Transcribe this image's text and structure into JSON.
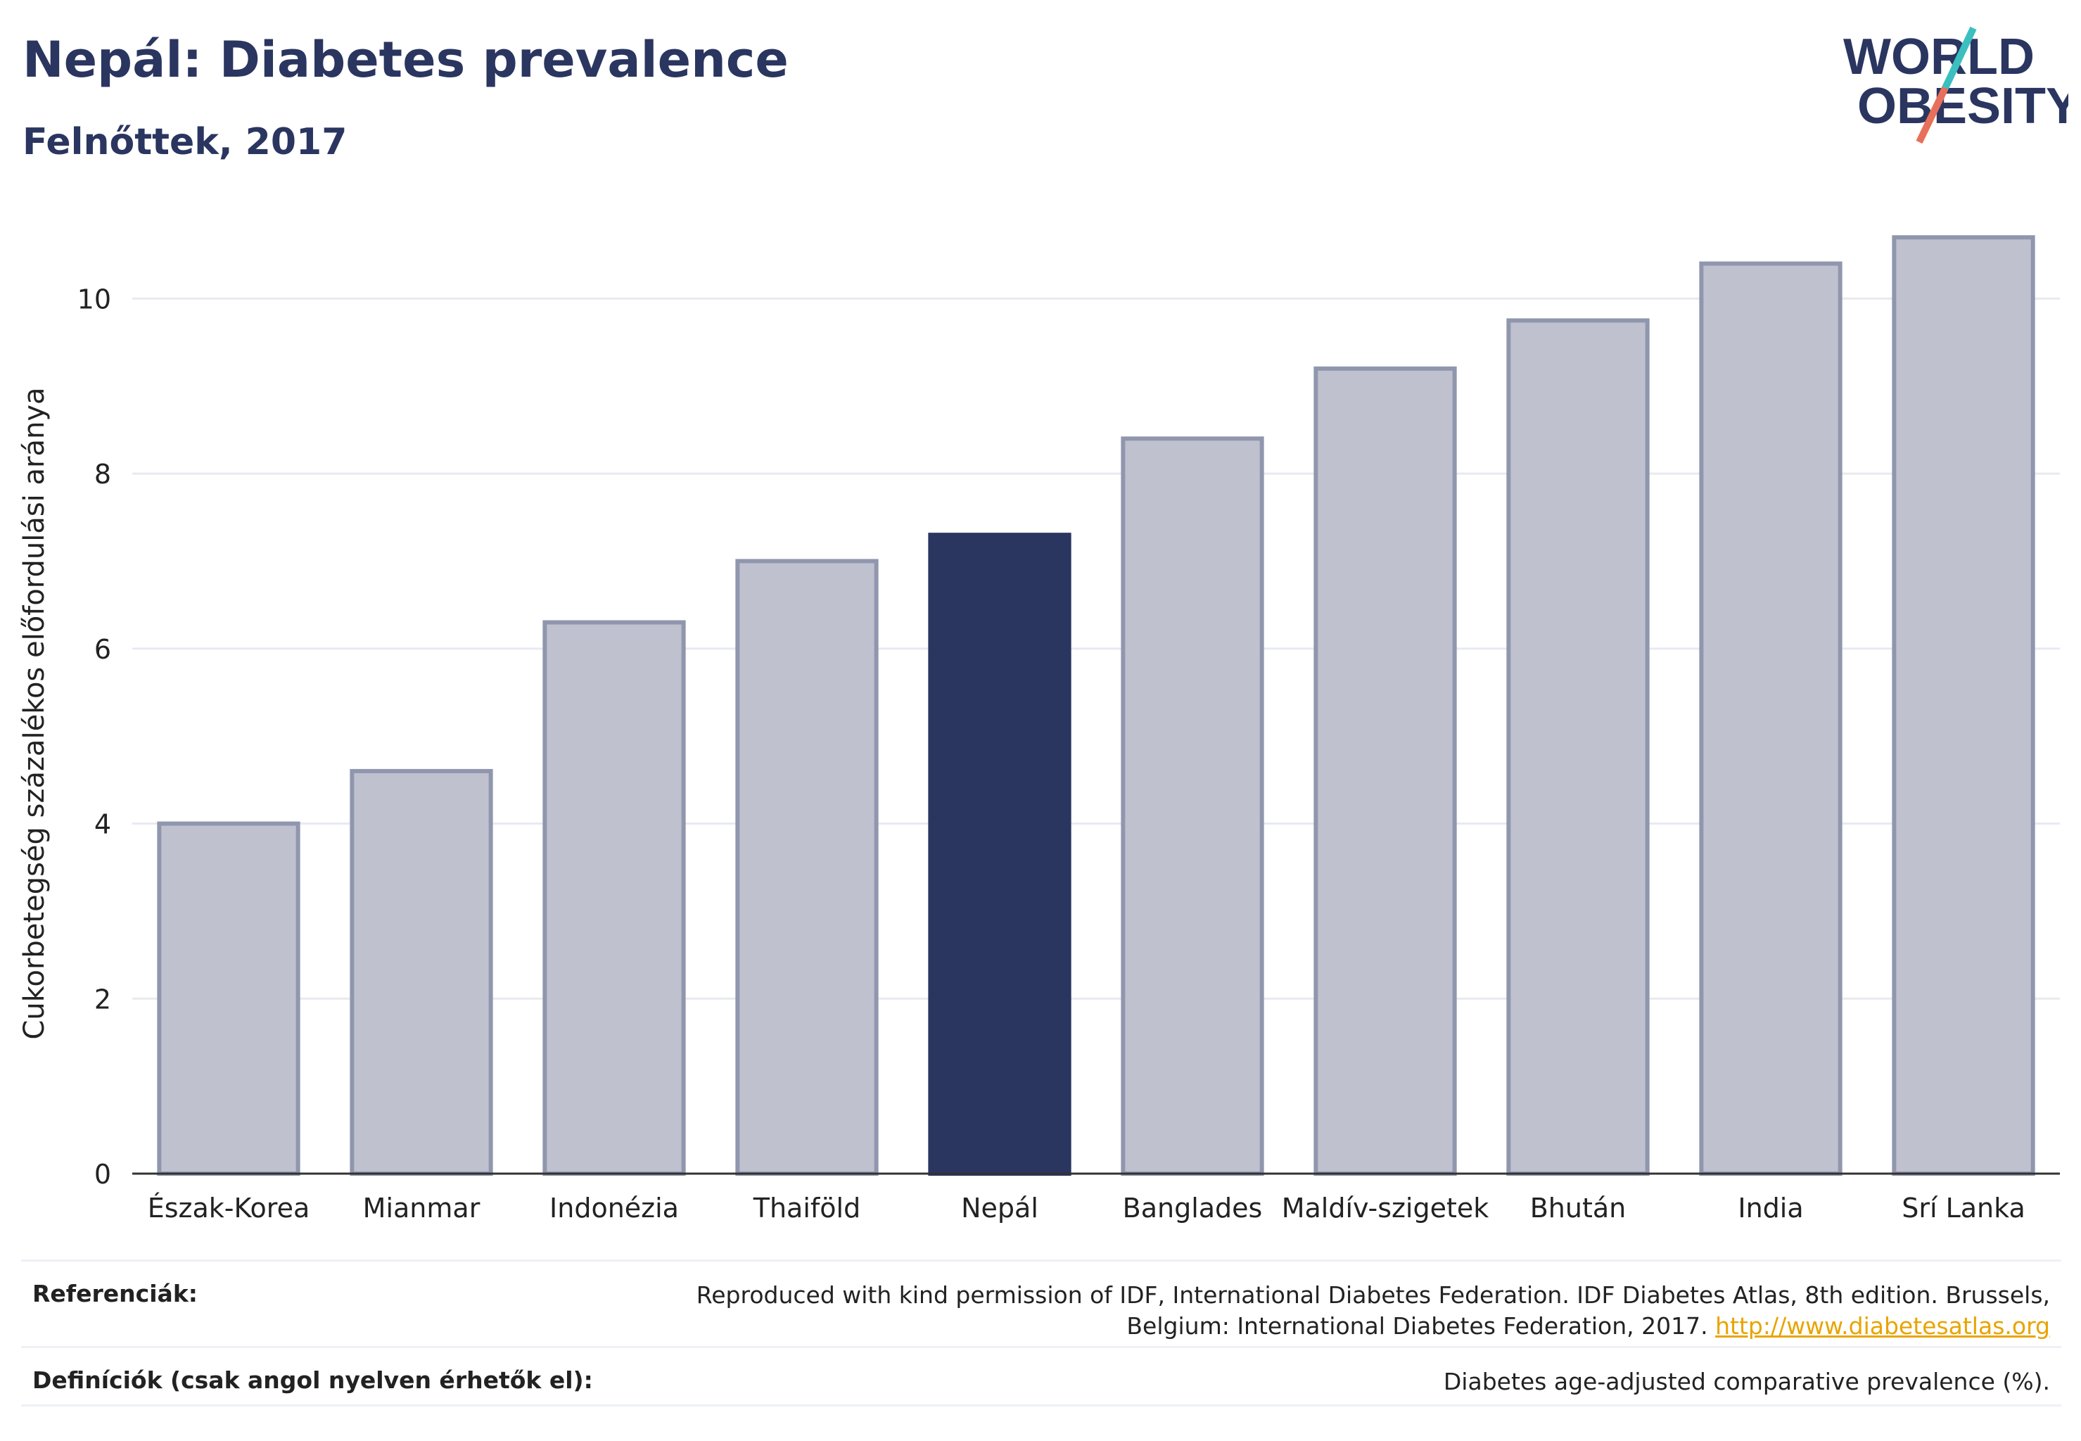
{
  "title": "Nepál: Diabetes prevalence",
  "subtitle": "Felnőttek, 2017",
  "logo": {
    "line1": "WORLD",
    "line2": "OBESITY",
    "accent_teal": "#3bbfbf",
    "accent_coral": "#e8705a",
    "text_color": "#2a3560"
  },
  "chart_data": {
    "type": "bar",
    "categories": [
      "Észak-Korea",
      "Mianmar",
      "Indonézia",
      "Thaiföld",
      "Nepál",
      "Banglades",
      "Maldív-szigetek",
      "Bhután",
      "India",
      "Srí Lanka"
    ],
    "values": [
      4.0,
      4.6,
      6.3,
      7.0,
      7.3,
      8.4,
      9.2,
      9.75,
      10.4,
      10.7
    ],
    "highlight": "Nepál",
    "ylabel": "Cukorbetegség százalékos előfordulási aránya",
    "xlabel": "",
    "ylim": [
      0,
      11
    ],
    "yticks": [
      0,
      2,
      4,
      6,
      8,
      10
    ],
    "grid": true,
    "colors": {
      "bar": "#bfc1ce",
      "bar_border": "#9096ad",
      "highlight": "#2a3560",
      "grid": "#e8eaf0"
    }
  },
  "footer": {
    "references_label": "Referenciák:",
    "references_text": "Reproduced with kind permission of IDF, International Diabetes Federation. IDF Diabetes Atlas, 8th edition. Brussels, Belgium: International Diabetes Federation, 2017.",
    "references_link": "http://www.diabetesatlas.org",
    "definitions_label": "Definíciók (csak angol nyelven érhetők el):",
    "definitions_text": "Diabetes age-adjusted comparative prevalence (%)."
  }
}
